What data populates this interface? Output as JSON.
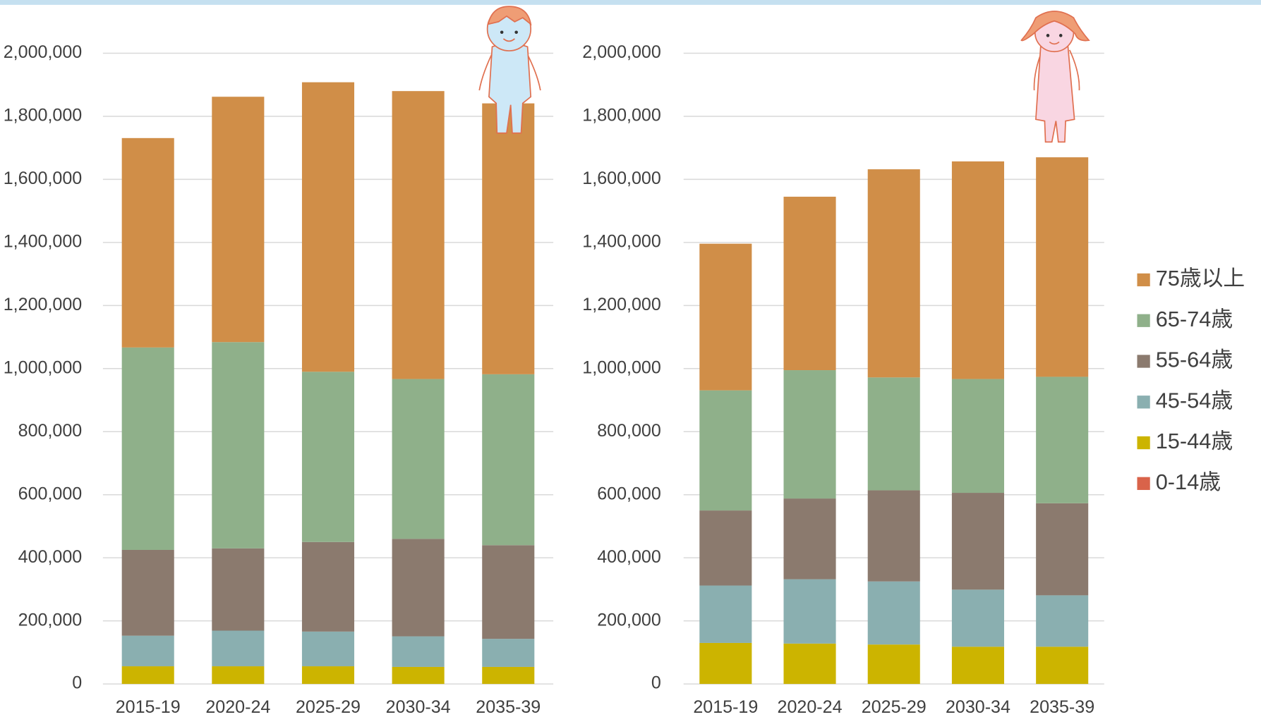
{
  "chart_data": [
    {
      "type": "stacked_bar",
      "categories": [
        "2015-19",
        "2020-24",
        "2025-29",
        "2030-34",
        "2035-39"
      ],
      "series": [
        {
          "name": "0-14歳",
          "color": "#d9634a",
          "values": [
            0,
            0,
            0,
            0,
            0
          ]
        },
        {
          "name": "15-44歳",
          "color": "#ccb400",
          "values": [
            56000,
            56000,
            56000,
            54000,
            54000
          ]
        },
        {
          "name": "45-54歳",
          "color": "#8aafb0",
          "values": [
            97000,
            113000,
            110000,
            97000,
            89000
          ]
        },
        {
          "name": "55-64歳",
          "color": "#8b7a6e",
          "values": [
            272000,
            261000,
            284000,
            309000,
            297000
          ]
        },
        {
          "name": "65-74歳",
          "color": "#8fb08a",
          "values": [
            642000,
            654000,
            540000,
            507000,
            542000
          ]
        },
        {
          "name": "75歳以上",
          "color": "#d08e48",
          "values": [
            664000,
            778000,
            918000,
            913000,
            859000
          ]
        }
      ],
      "ylim": [
        0,
        2000000
      ],
      "yticks": [
        0,
        {
          "value": 200000,
          "label": "200,000"
        },
        {
          "value": 400000,
          "label": "400,000"
        },
        {
          "value": 600000,
          "label": "600,000"
        },
        {
          "value": 800000,
          "label": "800,000"
        },
        {
          "value": 1000000,
          "label": "1,000,000"
        },
        {
          "value": 1200000,
          "label": "1,200,000"
        },
        {
          "value": 1400000,
          "label": "1,400,000"
        },
        {
          "value": 1600000,
          "label": "1,600,000"
        },
        {
          "value": 1800000,
          "label": "1,800,000"
        },
        {
          "value": 2000000,
          "label": "2,000,000"
        }
      ],
      "grid": true,
      "legend": false
    },
    {
      "type": "stacked_bar",
      "categories": [
        "2015-19",
        "2020-24",
        "2025-29",
        "2030-34",
        "2035-39"
      ],
      "series": [
        {
          "name": "0-14歳",
          "color": "#d9634a",
          "values": [
            0,
            0,
            0,
            0,
            0
          ]
        },
        {
          "name": "15-44歳",
          "color": "#ccb400",
          "values": [
            130000,
            128000,
            125000,
            118000,
            118000
          ]
        },
        {
          "name": "45-54歳",
          "color": "#8aafb0",
          "values": [
            182000,
            204000,
            200000,
            181000,
            163000
          ]
        },
        {
          "name": "55-64歳",
          "color": "#8b7a6e",
          "values": [
            238000,
            256000,
            289000,
            307000,
            292000
          ]
        },
        {
          "name": "65-74歳",
          "color": "#8fb08a",
          "values": [
            381000,
            407000,
            358000,
            361000,
            401000
          ]
        },
        {
          "name": "75歳以上",
          "color": "#d08e48",
          "values": [
            465000,
            550000,
            660000,
            690000,
            696000
          ]
        }
      ],
      "ylim": [
        0,
        2000000
      ],
      "yticks": [
        0,
        {
          "value": 200000,
          "label": "200,000"
        },
        {
          "value": 400000,
          "label": "400,000"
        },
        {
          "value": 600000,
          "label": "600,000"
        },
        {
          "value": 800000,
          "label": "800,000"
        },
        {
          "value": 1000000,
          "label": "1,000,000"
        },
        {
          "value": 1200000,
          "label": "1,200,000"
        },
        {
          "value": 1400000,
          "label": "1,400,000"
        },
        {
          "value": 1600000,
          "label": "1,600,000"
        },
        {
          "value": 1800000,
          "label": "1,800,000"
        },
        {
          "value": 2000000,
          "label": "2,000,000"
        }
      ],
      "grid": true,
      "legend": true
    }
  ]
}
